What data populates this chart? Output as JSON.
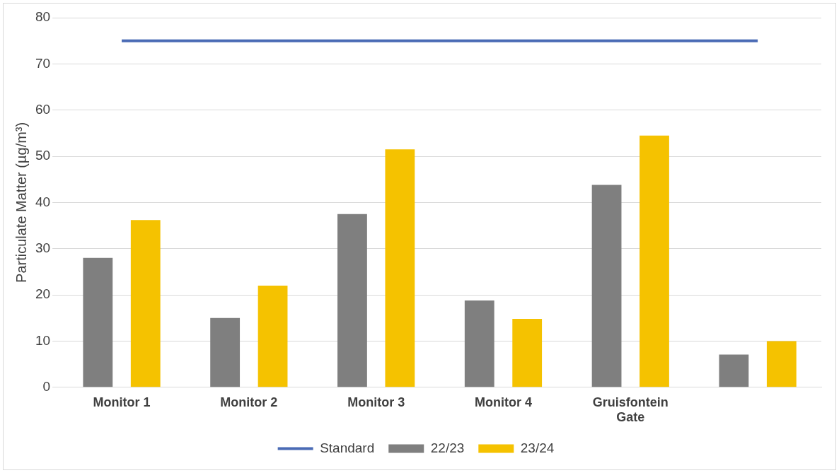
{
  "chart_data": {
    "type": "bar",
    "ylabel": "Particulate Matter (µg/m³)",
    "categories": [
      "Monitor 1",
      "Monitor 2",
      "Monitor 3",
      "Monitor 4",
      "Gruisfontein Gate",
      null
    ],
    "series": [
      {
        "name": "22/23",
        "color": "#7f7f7f",
        "values": [
          28,
          15,
          37.5,
          18.8,
          43.8,
          7.1
        ]
      },
      {
        "name": "23/24",
        "color": "#f5c200",
        "values": [
          36.2,
          22,
          51.5,
          14.8,
          54.5,
          10
        ]
      },
      {
        "name": "Standard",
        "type": "line",
        "color": "#4a6bb5",
        "values": [
          75,
          75,
          75,
          75,
          75,
          75
        ]
      }
    ],
    "ylim": [
      0,
      80
    ],
    "yticks": [
      0,
      10,
      20,
      30,
      40,
      50,
      60,
      70,
      80
    ],
    "grid": "y",
    "legend": "bottom",
    "marker": "none"
  }
}
